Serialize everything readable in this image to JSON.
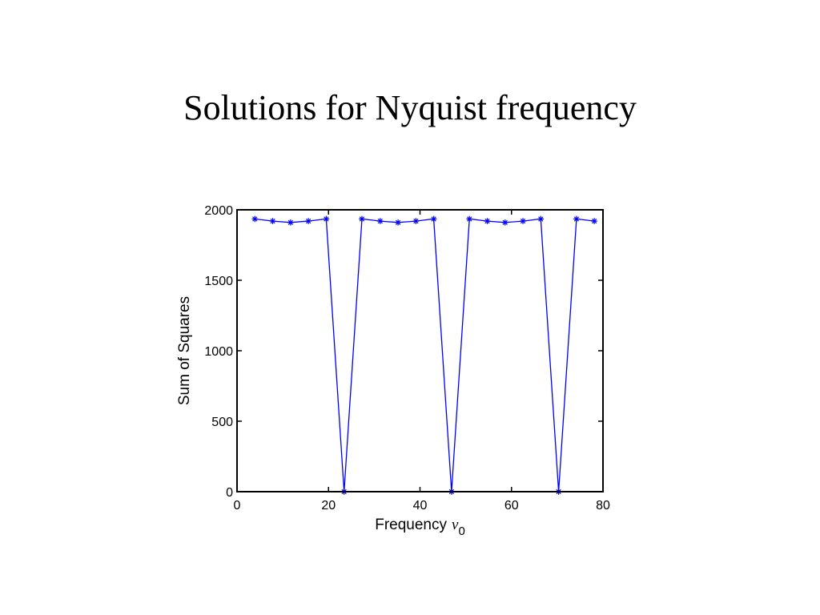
{
  "slide": {
    "title": "Solutions for Nyquist frequency"
  },
  "chart_data": {
    "type": "line",
    "title": "",
    "xlabel": "Frequency",
    "xlabel_symbol": "ν",
    "xlabel_subscript": "0",
    "ylabel": "Sum of Squares",
    "xlim": [
      0,
      80
    ],
    "ylim": [
      0,
      2000
    ],
    "xticks": [
      "0",
      "20",
      "40",
      "60",
      "80"
    ],
    "yticks": [
      "0",
      "500",
      "1000",
      "1500",
      "2000"
    ],
    "grid": false,
    "marker": "asterisk",
    "line_color": "#0000ff",
    "axis_color": "#000000",
    "series": [
      {
        "x": [
          3.9,
          7.8,
          11.7,
          15.6,
          19.5,
          23.4,
          27.3,
          31.3,
          35.2,
          39.1,
          43.0,
          46.9,
          50.8,
          54.7,
          58.6,
          62.5,
          66.4,
          70.3,
          74.2,
          78.1
        ],
        "y": [
          1935,
          1920,
          1910,
          1920,
          1935,
          0,
          1935,
          1920,
          1910,
          1920,
          1935,
          0,
          1935,
          1920,
          1910,
          1920,
          1935,
          0,
          1935,
          1920
        ]
      }
    ]
  }
}
